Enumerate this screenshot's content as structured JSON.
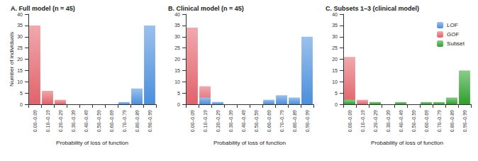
{
  "chart_data": [
    {
      "type": "bar",
      "title": "A. Full model (n = 45)",
      "xlabel": "Probability of loss of function",
      "ylabel": "Number of individuals",
      "categories": [
        "0.00–0.09",
        "0.10–0.19",
        "0.20–0.29",
        "0.30–0.39",
        "0.40–0.49",
        "0.50–0.59",
        "0.60–0.69",
        "0.70–0.79",
        "0.80–0.89",
        "0.90–0.99"
      ],
      "series": [
        {
          "name": "LOF",
          "color": "#4a8fdc",
          "values": [
            0,
            0,
            0,
            0,
            0,
            0,
            0,
            1,
            7,
            35
          ]
        },
        {
          "name": "GOF",
          "color": "#e2626a",
          "values": [
            35,
            6,
            2,
            0,
            0,
            0,
            0,
            0,
            0,
            0
          ]
        }
      ],
      "ylim": [
        0,
        40
      ],
      "yticks": [
        0,
        5,
        10,
        15,
        20,
        25,
        30,
        35,
        40
      ],
      "grid": false
    },
    {
      "type": "bar",
      "title": "B. Clinical model (n = 45)",
      "xlabel": "Probability of loss of function",
      "categories": [
        "0.00–0.09",
        "0.10–0.19",
        "0.20–0.29",
        "0.30–0.39",
        "0.40–0.49",
        "0.50–0.59",
        "0.60–0.69",
        "0.70–0.79",
        "0.80–0.89",
        "0.90–0.99"
      ],
      "series": [
        {
          "name": "LOF",
          "color": "#4a8fdc",
          "values": [
            0,
            3,
            1,
            0,
            0,
            0,
            2,
            4,
            3,
            30
          ]
        },
        {
          "name": "GOF",
          "color": "#e2626a",
          "values": [
            34,
            8,
            1,
            0,
            0,
            0,
            0,
            0,
            0,
            0
          ]
        }
      ],
      "ylim": [
        0,
        40
      ],
      "yticks": [
        0,
        5,
        10,
        15,
        20,
        25,
        30,
        35,
        40
      ],
      "grid": false
    },
    {
      "type": "bar",
      "title": "C. Subsets 1–3 (clinical model)",
      "xlabel": "Probability of loss of function",
      "categories": [
        "0.00–0.09",
        "0.10–0.19",
        "0.20–0.29",
        "0.30–0.39",
        "0.40–0.49",
        "0.50–0.59",
        "0.60–0.69",
        "0.70–0.79",
        "0.80–0.89",
        "0.90–0.99"
      ],
      "series": [
        {
          "name": "Subset",
          "color": "#2ca02c",
          "values": [
            2,
            0,
            1,
            0,
            1,
            0,
            1,
            1,
            3,
            15
          ]
        },
        {
          "name": "GOF",
          "color": "#e2626a",
          "values": [
            21,
            2,
            1,
            0,
            0,
            0,
            0,
            0,
            0,
            0
          ]
        }
      ],
      "ylim": [
        0,
        40
      ],
      "yticks": [
        0,
        5,
        10,
        15,
        20,
        25,
        30,
        35,
        40
      ],
      "grid": false,
      "legend": "upper right"
    }
  ]
}
